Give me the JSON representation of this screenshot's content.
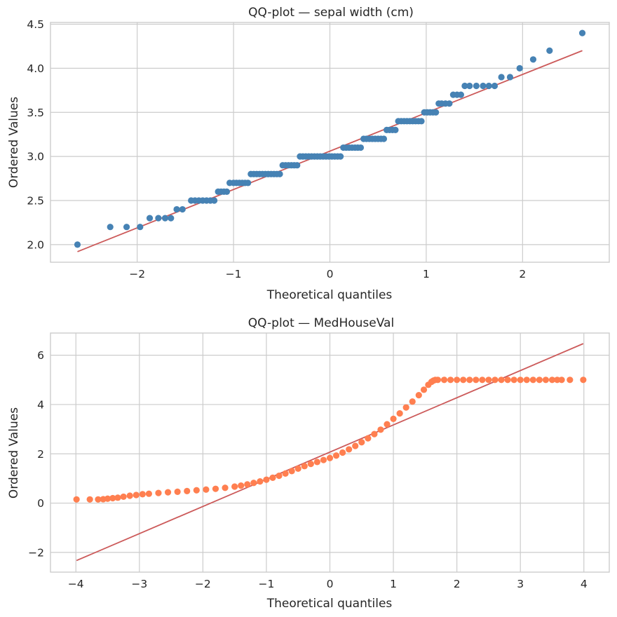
{
  "chart_data": [
    {
      "type": "scatter",
      "title": "QQ-plot — sepal width (cm)",
      "xlabel": "Theoretical quantiles",
      "ylabel": "Ordered Values",
      "xlim": [
        -2.9,
        2.9
      ],
      "ylim": [
        1.8,
        4.52
      ],
      "xticks": [
        -2,
        -1,
        0,
        1,
        2
      ],
      "xtick_labels": [
        "−2",
        "−1",
        "0",
        "1",
        "2"
      ],
      "yticks": [
        2.0,
        2.5,
        3.0,
        3.5,
        4.0,
        4.5
      ],
      "ytick_labels": [
        "2.0",
        "2.5",
        "3.0",
        "3.5",
        "4.0",
        "4.5"
      ],
      "grid": true,
      "point_color": "#4682b4",
      "line_color": "#cd5c5c",
      "fit_line": {
        "x": [
          -2.62,
          2.62
        ],
        "y": [
          1.92,
          4.2
        ]
      },
      "series": [
        {
          "name": "ordered values",
          "x": [
            -2.62,
            -2.28,
            -2.11,
            -1.97,
            -1.87,
            -1.78,
            -1.71,
            -1.65,
            -1.59,
            -1.53,
            -1.44,
            -1.4,
            -1.36,
            -1.32,
            -1.28,
            -1.24,
            -1.2,
            -1.16,
            -1.13,
            -1.1,
            -1.07,
            -1.04,
            -1.0,
            -0.97,
            -0.94,
            -0.91,
            -0.88,
            -0.85,
            -0.82,
            -0.79,
            -0.76,
            -0.73,
            -0.7,
            -0.67,
            -0.64,
            -0.61,
            -0.58,
            -0.55,
            -0.52,
            -0.49,
            -0.46,
            -0.43,
            -0.4,
            -0.37,
            -0.34,
            -0.31,
            -0.28,
            -0.25,
            -0.22,
            -0.19,
            -0.16,
            -0.13,
            -0.1,
            -0.07,
            -0.04,
            -0.01,
            0.02,
            0.05,
            0.08,
            0.11,
            0.14,
            0.17,
            0.2,
            0.23,
            0.26,
            0.29,
            0.32,
            0.35,
            0.38,
            0.41,
            0.44,
            0.47,
            0.5,
            0.53,
            0.56,
            0.59,
            0.62,
            0.65,
            0.68,
            0.71,
            0.74,
            0.77,
            0.8,
            0.83,
            0.86,
            0.89,
            0.92,
            0.95,
            0.98,
            1.01,
            1.04,
            1.07,
            1.1,
            1.13,
            1.16,
            1.2,
            1.24,
            1.28,
            1.32,
            1.36,
            1.4,
            1.45,
            1.52,
            1.59,
            1.65,
            1.71,
            1.78,
            1.87,
            1.97,
            2.11,
            2.28,
            2.62
          ],
          "y": [
            2.0,
            2.2,
            2.2,
            2.2,
            2.3,
            2.3,
            2.3,
            2.3,
            2.4,
            2.4,
            2.5,
            2.5,
            2.5,
            2.5,
            2.5,
            2.5,
            2.5,
            2.6,
            2.6,
            2.6,
            2.6,
            2.7,
            2.7,
            2.7,
            2.7,
            2.7,
            2.7,
            2.7,
            2.8,
            2.8,
            2.8,
            2.8,
            2.8,
            2.8,
            2.8,
            2.8,
            2.8,
            2.8,
            2.8,
            2.9,
            2.9,
            2.9,
            2.9,
            2.9,
            2.9,
            3.0,
            3.0,
            3.0,
            3.0,
            3.0,
            3.0,
            3.0,
            3.0,
            3.0,
            3.0,
            3.0,
            3.0,
            3.0,
            3.0,
            3.0,
            3.1,
            3.1,
            3.1,
            3.1,
            3.1,
            3.1,
            3.1,
            3.2,
            3.2,
            3.2,
            3.2,
            3.2,
            3.2,
            3.2,
            3.2,
            3.3,
            3.3,
            3.3,
            3.3,
            3.4,
            3.4,
            3.4,
            3.4,
            3.4,
            3.4,
            3.4,
            3.4,
            3.4,
            3.5,
            3.5,
            3.5,
            3.5,
            3.5,
            3.6,
            3.6,
            3.6,
            3.6,
            3.7,
            3.7,
            3.7,
            3.8,
            3.8,
            3.8,
            3.8,
            3.8,
            3.8,
            3.9,
            3.9,
            4.0,
            4.1,
            4.2,
            4.4
          ]
        }
      ]
    },
    {
      "type": "scatter",
      "title": "QQ-plot — MedHouseVal",
      "xlabel": "Theoretical quantiles",
      "ylabel": "Ordered Values",
      "xlim": [
        -4.4,
        4.4
      ],
      "ylim": [
        -2.8,
        6.9
      ],
      "xticks": [
        -4,
        -3,
        -2,
        -1,
        0,
        1,
        2,
        3,
        4
      ],
      "xtick_labels": [
        "−4",
        "−3",
        "−2",
        "−1",
        "0",
        "1",
        "2",
        "3",
        "4"
      ],
      "yticks": [
        -2,
        0,
        2,
        4,
        6
      ],
      "ytick_labels": [
        "−2",
        "0",
        "2",
        "4",
        "6"
      ],
      "grid": true,
      "point_color": "#ff7f50",
      "line_color": "#cd5c5c",
      "fit_line": {
        "x": [
          -3.99,
          3.99
        ],
        "y": [
          -2.33,
          6.47
        ]
      },
      "series": [
        {
          "name": "ordered values",
          "x": [
            -3.99,
            -3.78,
            -3.65,
            -3.57,
            -3.5,
            -3.42,
            -3.34,
            -3.25,
            -3.15,
            -3.05,
            -2.95,
            -2.85,
            -2.7,
            -2.55,
            -2.4,
            -2.25,
            -2.1,
            -1.95,
            -1.8,
            -1.65,
            -1.5,
            -1.4,
            -1.3,
            -1.2,
            -1.1,
            -1.0,
            -0.9,
            -0.8,
            -0.7,
            -0.6,
            -0.5,
            -0.4,
            -0.3,
            -0.2,
            -0.1,
            0.0,
            0.1,
            0.2,
            0.3,
            0.4,
            0.5,
            0.6,
            0.7,
            0.8,
            0.9,
            1.0,
            1.1,
            1.2,
            1.3,
            1.4,
            1.48,
            1.55,
            1.6,
            1.63,
            1.66,
            1.7,
            1.8,
            1.9,
            2.0,
            2.1,
            2.2,
            2.3,
            2.4,
            2.5,
            2.6,
            2.7,
            2.8,
            2.9,
            3.0,
            3.1,
            3.2,
            3.3,
            3.4,
            3.5,
            3.58,
            3.65,
            3.78,
            3.99
          ],
          "y": [
            0.15,
            0.15,
            0.15,
            0.16,
            0.18,
            0.2,
            0.22,
            0.26,
            0.3,
            0.33,
            0.36,
            0.38,
            0.41,
            0.44,
            0.46,
            0.49,
            0.52,
            0.55,
            0.58,
            0.62,
            0.67,
            0.71,
            0.76,
            0.82,
            0.88,
            0.95,
            1.03,
            1.11,
            1.2,
            1.3,
            1.4,
            1.5,
            1.59,
            1.67,
            1.75,
            1.83,
            1.93,
            2.05,
            2.18,
            2.32,
            2.47,
            2.63,
            2.8,
            2.98,
            3.2,
            3.42,
            3.64,
            3.88,
            4.12,
            4.38,
            4.6,
            4.8,
            4.92,
            4.97,
            5.0,
            5.0,
            5.0,
            5.0,
            5.0,
            5.0,
            5.0,
            5.0,
            5.0,
            5.0,
            5.0,
            5.0,
            5.0,
            5.0,
            5.0,
            5.0,
            5.0,
            5.0,
            5.0,
            5.0,
            5.0,
            5.0,
            5.0,
            5.0
          ]
        }
      ]
    }
  ]
}
